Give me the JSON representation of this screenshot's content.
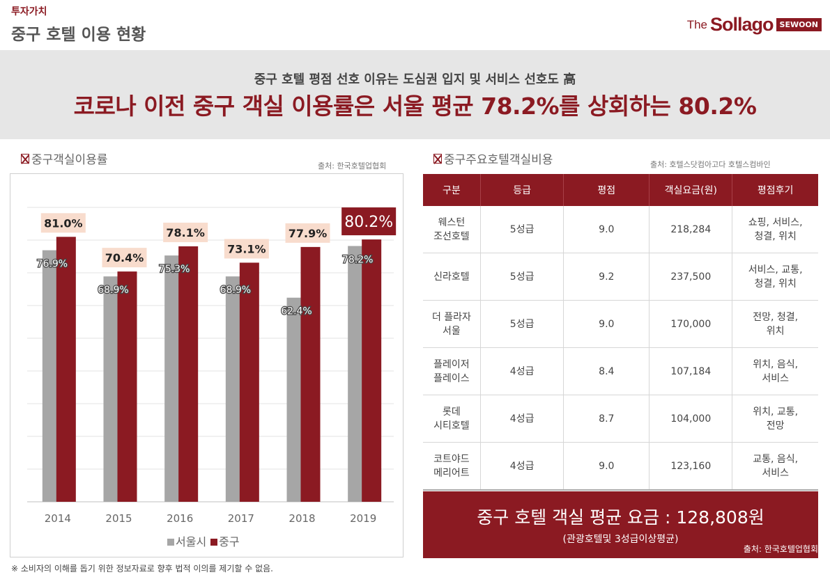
{
  "header": {
    "category": "투자가치",
    "title": "중구 호텔 이용 현황",
    "logo_the": "The",
    "logo_brand": "Sollago",
    "logo_badge": "SEWOON"
  },
  "banner": {
    "subtitle": "중구 호텔 평점 선호 이유는 도심권 입지 및 서비스 선호도 高",
    "headline": "코로나 이전 중구 객실 이용률은 서울 평균 78.2%를 상회하는 80.2%"
  },
  "left_section": {
    "title": "중구객실이용률",
    "source": "출처: 한국호텔업협회"
  },
  "right_section": {
    "title": "중구주요호텔객실비용",
    "source": "출처: 호텔스닷컴아고다 호텔스컴바인"
  },
  "colors": {
    "accent": "#8b1a22",
    "seoul_bar": "#a6a6a6",
    "junggu_bar": "#8b1a22",
    "label_bg": "#f8dccd"
  },
  "chart_data": {
    "type": "bar",
    "categories": [
      "2014",
      "2015",
      "2016",
      "2017",
      "2018",
      "2019"
    ],
    "series": [
      {
        "name": "서울시",
        "values": [
          76.9,
          68.9,
          75.3,
          68.9,
          62.4,
          78.2
        ],
        "labels": [
          "76.9%",
          "68.9%",
          "75.3%",
          "68.9%",
          "62.4%",
          "78.2%"
        ]
      },
      {
        "name": "중구",
        "values": [
          81.0,
          70.4,
          78.1,
          73.1,
          77.9,
          80.2
        ],
        "labels": [
          "81.0%",
          "70.4%",
          "78.1%",
          "73.1%",
          "77.9%",
          "80.2%"
        ]
      }
    ],
    "title": "",
    "xlabel": "",
    "ylabel": "",
    "ylim": [
      0,
      90
    ],
    "grid": true,
    "legend": "bottom-center"
  },
  "table": {
    "headers": [
      "구분",
      "등급",
      "평점",
      "객실요금(원)",
      "평점후기"
    ],
    "rows": [
      {
        "name": "웨스턴\n조선호텔",
        "grade": "5성급",
        "score": "9.0",
        "price": "218,284",
        "review": "쇼핑, 서비스,\n청결, 위치"
      },
      {
        "name": "신라호텔",
        "grade": "5성급",
        "score": "9.2",
        "price": "237,500",
        "review": "서비스, 교통,\n청결, 위치"
      },
      {
        "name": "더 플라자\n서울",
        "grade": "5성급",
        "score": "9.0",
        "price": "170,000",
        "review": "전망, 청결,\n위치"
      },
      {
        "name": "플레이저\n플레이스",
        "grade": "4성급",
        "score": "8.4",
        "price": "107,184",
        "review": "위치, 음식,\n서비스"
      },
      {
        "name": "롯데\n시티호텔",
        "grade": "4성급",
        "score": "8.7",
        "price": "104,000",
        "review": "위치, 교통,\n전망"
      },
      {
        "name": "코트야드\n메리어트",
        "grade": "4성급",
        "score": "9.0",
        "price": "123,160",
        "review": "교통, 음식,\n서비스"
      }
    ]
  },
  "summary": {
    "main": "중구 호텔 객실 평균 요금 : 128,808원",
    "sub": "(관광호텔및 3성급이상평균)",
    "source": "출처: 한국호텔업협회"
  },
  "footnote": "※ 소비자의 이해를 돕기 위한 정보자료로 향후 법적 이의를  제기할 수 없음."
}
